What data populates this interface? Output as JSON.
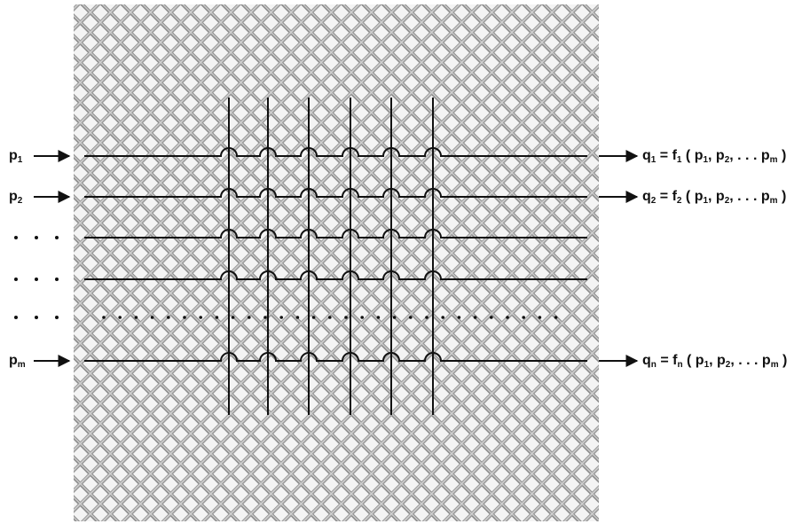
{
  "inputs": [
    {
      "t": "p",
      "s": "1"
    },
    {
      "t": "p",
      "s": "2"
    },
    {
      "t": "p",
      "s": "m"
    }
  ],
  "outputs": [
    {
      "parts": [
        {
          "t": "q",
          "s": "1"
        },
        " = ",
        {
          "t": "f",
          "s": "1"
        },
        " ( ",
        {
          "t": "p",
          "s": "1"
        },
        ", ",
        {
          "t": "p",
          "s": "2"
        },
        ", . . . ",
        {
          "t": "p",
          "s": "m"
        },
        " )"
      ]
    },
    {
      "parts": [
        {
          "t": "q",
          "s": "2"
        },
        " = ",
        {
          "t": "f",
          "s": "2"
        },
        " ( ",
        {
          "t": "p",
          "s": "1"
        },
        ", ",
        {
          "t": "p",
          "s": "2"
        },
        ", . . . ",
        {
          "t": "p",
          "s": "m"
        },
        " )"
      ]
    },
    {
      "parts": [
        {
          "t": "q",
          "s": "n"
        },
        " = ",
        {
          "t": "f",
          "s": "n"
        },
        " ( ",
        {
          "t": "p",
          "s": "1"
        },
        ", ",
        {
          "t": "p",
          "s": "2"
        },
        ", . . . ",
        {
          "t": "p",
          "s": "m"
        },
        " )"
      ]
    }
  ]
}
